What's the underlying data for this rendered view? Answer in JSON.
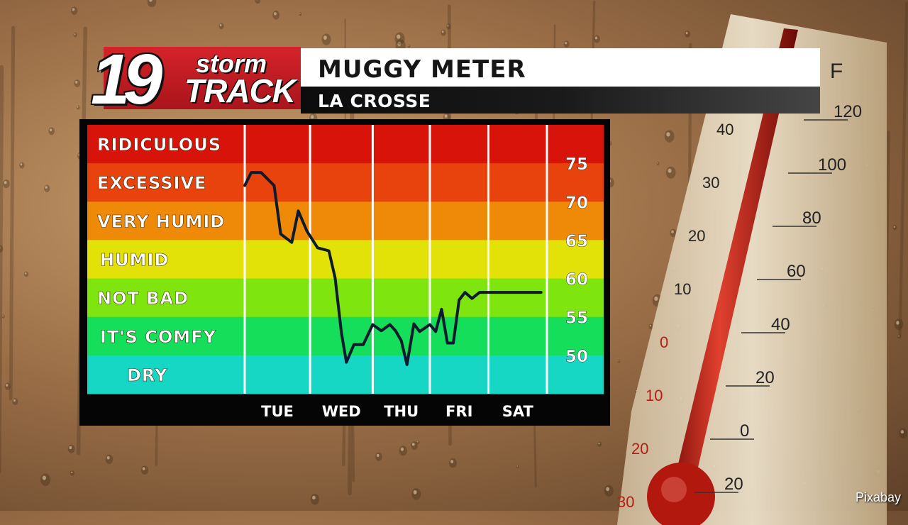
{
  "header": {
    "logo_number": "19",
    "logo_storm": "storm",
    "logo_track": "TRACK",
    "title": "MUGGY METER",
    "subtitle": "LA CROSSE"
  },
  "credit": "Pixabay",
  "thermometer": {
    "unit": "F",
    "fahrenheit_labels": [
      "120",
      "100",
      "80",
      "60",
      "40",
      "20",
      "0",
      "20"
    ],
    "celsius_labels": [
      "40",
      "30",
      "20",
      "10",
      "0",
      "10",
      "20",
      "30"
    ]
  },
  "chart_data": {
    "type": "line",
    "title": "MUGGY METER",
    "ylim": [
      45,
      80
    ],
    "y_ticks": [
      75,
      70,
      65,
      60,
      55,
      50
    ],
    "bands": [
      {
        "label": "RIDICULOUS",
        "color": "#d8140a"
      },
      {
        "label": "EXCESSIVE",
        "color": "#e8420d"
      },
      {
        "label": "VERY HUMID",
        "color": "#ee8a08"
      },
      {
        "label": "HUMID",
        "color": "#e3e208"
      },
      {
        "label": "NOT BAD",
        "color": "#7ee50f"
      },
      {
        "label": "IT'S COMFY",
        "color": "#14de5a"
      },
      {
        "label": "DRY",
        "color": "#16d6c4"
      }
    ],
    "categories": [
      "TUE",
      "WED",
      "THU",
      "FRI",
      "SAT"
    ],
    "series": [
      {
        "color": "#0e1a2e",
        "x": [
          0.0,
          0.1,
          0.25,
          0.45,
          0.55,
          0.72,
          0.82,
          0.95,
          1.12,
          1.3,
          1.4,
          1.5,
          1.58,
          1.7,
          1.85,
          2.0,
          2.15,
          2.3,
          2.4,
          2.5,
          2.6,
          2.72,
          2.82,
          3.0,
          3.1,
          3.2,
          3.3,
          3.4,
          3.5,
          3.6,
          3.72,
          3.85,
          4.0,
          4.1,
          4.2,
          4.32,
          4.45,
          4.55,
          4.7,
          4.8,
          4.9
        ],
        "y": [
          72.1,
          73.8,
          73.8,
          72.1,
          65.8,
          64.7,
          68.8,
          66.2,
          64.0,
          63.6,
          60.1,
          53.0,
          49.1,
          51.4,
          51.4,
          54.0,
          53.2,
          54.0,
          53.2,
          51.9,
          48.8,
          54.1,
          53.1,
          54.0,
          53.1,
          56.0,
          51.6,
          51.6,
          57.2,
          58.2,
          57.4,
          58.2,
          58.2,
          58.2,
          58.2,
          58.2,
          58.2,
          58.2,
          58.2,
          58.2,
          58.2
        ]
      }
    ]
  }
}
